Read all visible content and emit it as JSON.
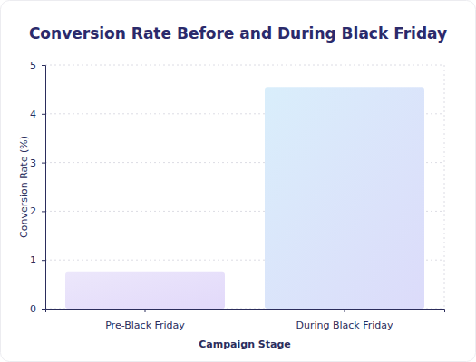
{
  "chart_data": {
    "type": "bar",
    "title": "Conversion Rate Before and During Black Friday",
    "x_label": "Campaign Stage",
    "y_label": "Conversion Rate (%)",
    "categories": [
      "Pre-Black Friday",
      "During Black Friday"
    ],
    "values": [
      0.75,
      4.55
    ],
    "colors": [
      "#ece7fb",
      "#d9eefb"
    ],
    "ylim": [
      0,
      5
    ],
    "yticks": [
      0,
      1,
      2,
      3,
      4,
      5
    ],
    "grid": true
  }
}
